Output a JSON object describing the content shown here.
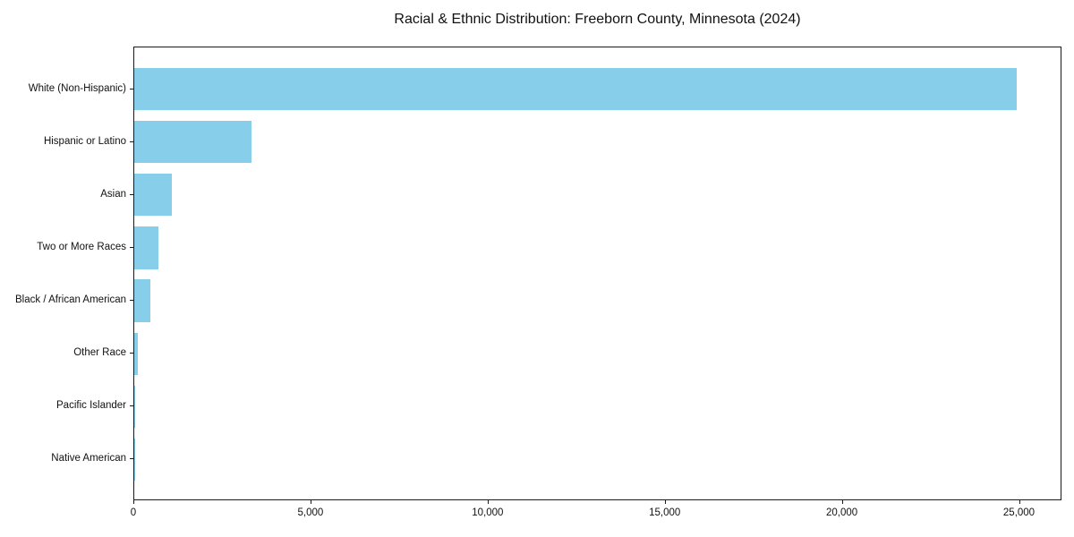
{
  "chart_data": {
    "type": "bar",
    "orientation": "horizontal",
    "title": "Racial & Ethnic Distribution: Freeborn County, Minnesota (2024)",
    "xlabel": "",
    "ylabel": "",
    "categories": [
      "White (Non-Hispanic)",
      "Hispanic or Latino",
      "Asian",
      "Two or More Races",
      "Black / African American",
      "Other Race",
      "Pacific Islander",
      "Native American"
    ],
    "values": [
      24900,
      3300,
      1070,
      680,
      460,
      100,
      30,
      25
    ],
    "xlim": [
      0,
      26200
    ],
    "x_ticks": [
      0,
      5000,
      10000,
      15000,
      20000,
      25000
    ],
    "x_tick_labels": [
      "0",
      "5,000",
      "10,000",
      "15,000",
      "20,000",
      "25,000"
    ],
    "bar_color": "#87CEEB",
    "grid": false,
    "legend": null
  }
}
